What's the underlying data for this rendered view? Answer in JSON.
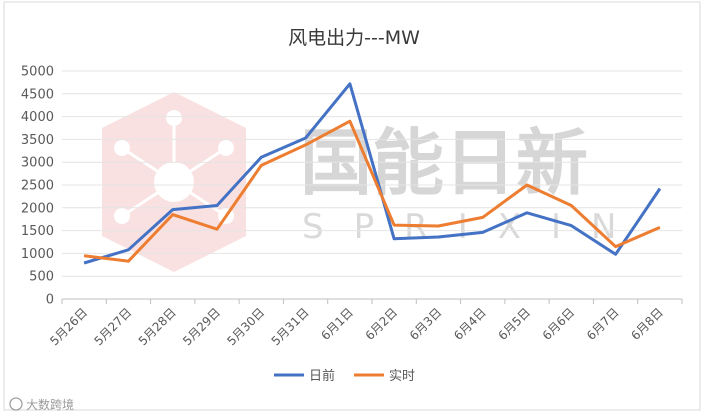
{
  "chart_data": {
    "type": "line",
    "title": "风电出力---MW",
    "categories": [
      "5月26日",
      "5月27日",
      "5月28日",
      "5月29日",
      "5月30日",
      "5月31日",
      "6月1日",
      "6月2日",
      "6月3日",
      "6月4日",
      "6月5日",
      "6月6日",
      "6月7日",
      "6月8日"
    ],
    "series": [
      {
        "name": "日前",
        "color": "#4472c4",
        "values": [
          790,
          1080,
          1960,
          2050,
          3110,
          3530,
          4720,
          1320,
          1360,
          1460,
          1890,
          1610,
          980,
          2420
        ]
      },
      {
        "name": "实时",
        "color": "#ed7d31",
        "values": [
          950,
          830,
          1850,
          1530,
          2930,
          3380,
          3900,
          1620,
          1600,
          1790,
          2500,
          2050,
          1150,
          1570
        ]
      }
    ],
    "ylim": [
      0,
      5000
    ],
    "yticks": [
      0,
      500,
      1000,
      1500,
      2000,
      2500,
      3000,
      3500,
      4000,
      4500,
      5000
    ],
    "grid": true,
    "legend": "bottom",
    "xlabel": "",
    "ylabel": ""
  },
  "watermark": {
    "brand_cn": "国能日新",
    "brand_en": "SPRIXIN"
  },
  "footer": {
    "source": "大数跨境"
  }
}
